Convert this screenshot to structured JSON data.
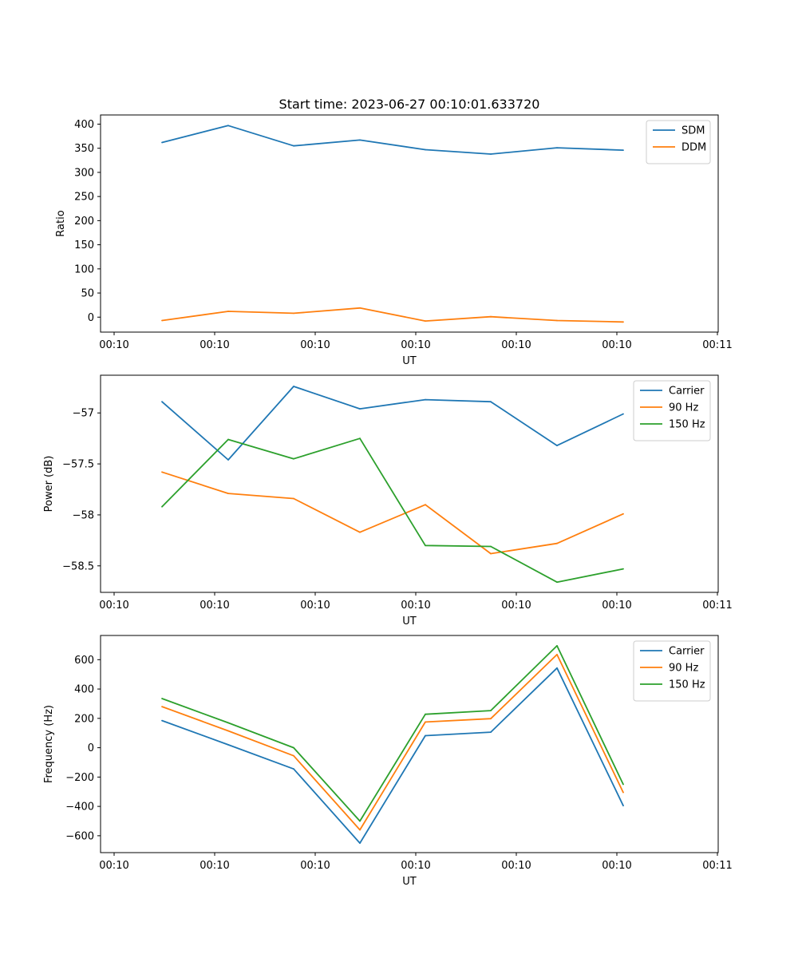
{
  "figure_title": "Start time: 2023-06-27 00:10:01.633720",
  "chart_data": [
    {
      "type": "line",
      "title": "Start time: 2023-06-27 00:10:01.633720",
      "xlabel": "UT",
      "ylabel": "Ratio",
      "x": [
        "00:10",
        "00:10",
        "00:10",
        "00:10",
        "00:10",
        "00:10",
        "00:10",
        "00:10"
      ],
      "xticks": [
        "00:10",
        "00:10",
        "00:10",
        "00:10",
        "00:10",
        "00:10",
        "00:11"
      ],
      "yticks": [
        0,
        50,
        100,
        150,
        200,
        250,
        300,
        350,
        400
      ],
      "ylim": [
        -31,
        419
      ],
      "legend": "top-right",
      "series": [
        {
          "name": "SDM",
          "color": "#1f77b4",
          "values": [
            362,
            397,
            355,
            367,
            347,
            338,
            351,
            346
          ]
        },
        {
          "name": "DDM",
          "color": "#ff7f0e",
          "values": [
            -7,
            12,
            8,
            19,
            -8,
            1,
            -7,
            -10
          ]
        }
      ]
    },
    {
      "type": "line",
      "title": "",
      "xlabel": "UT",
      "ylabel": "Power (dB)",
      "x": [
        "00:10",
        "00:10",
        "00:10",
        "00:10",
        "00:10",
        "00:10",
        "00:10",
        "00:10"
      ],
      "xticks": [
        "00:10",
        "00:10",
        "00:10",
        "00:10",
        "00:10",
        "00:10",
        "00:11"
      ],
      "yticks": [
        -57.0,
        -57.5,
        -58.0,
        -58.5
      ],
      "ylim": [
        -58.76,
        -56.63
      ],
      "legend": "top-right",
      "series": [
        {
          "name": "Carrier",
          "color": "#1f77b4",
          "values": [
            -56.89,
            -57.46,
            -56.74,
            -56.96,
            -56.87,
            -56.89,
            -57.32,
            -57.01
          ]
        },
        {
          "name": "90 Hz",
          "color": "#ff7f0e",
          "values": [
            -57.58,
            -57.79,
            -57.84,
            -58.17,
            -57.9,
            -58.38,
            -58.28,
            -57.99
          ]
        },
        {
          "name": "150 Hz",
          "color": "#2ca02c",
          "values": [
            -57.92,
            -57.26,
            -57.45,
            -57.25,
            -58.3,
            -58.31,
            -58.66,
            -58.53
          ]
        }
      ]
    },
    {
      "type": "line",
      "title": "",
      "xlabel": "UT",
      "ylabel": "Frequency (Hz)",
      "x": [
        "00:10",
        "00:10",
        "00:10",
        "00:10",
        "00:10",
        "00:10",
        "00:10",
        "00:10"
      ],
      "xticks": [
        "00:10",
        "00:10",
        "00:10",
        "00:10",
        "00:10",
        "00:10",
        "00:11"
      ],
      "yticks": [
        -600,
        -400,
        -200,
        0,
        200,
        400,
        600
      ],
      "ylim": [
        -715,
        765
      ],
      "legend": "top-right",
      "series": [
        {
          "name": "Carrier",
          "color": "#1f77b4",
          "values": [
            185,
            20,
            -145,
            -650,
            82,
            106,
            543,
            -395
          ]
        },
        {
          "name": "90 Hz",
          "color": "#ff7f0e",
          "values": [
            280,
            115,
            -55,
            -560,
            175,
            198,
            635,
            -305
          ]
        },
        {
          "name": "150 Hz",
          "color": "#2ca02c",
          "values": [
            335,
            170,
            0,
            -500,
            228,
            253,
            695,
            -250
          ]
        }
      ]
    }
  ]
}
